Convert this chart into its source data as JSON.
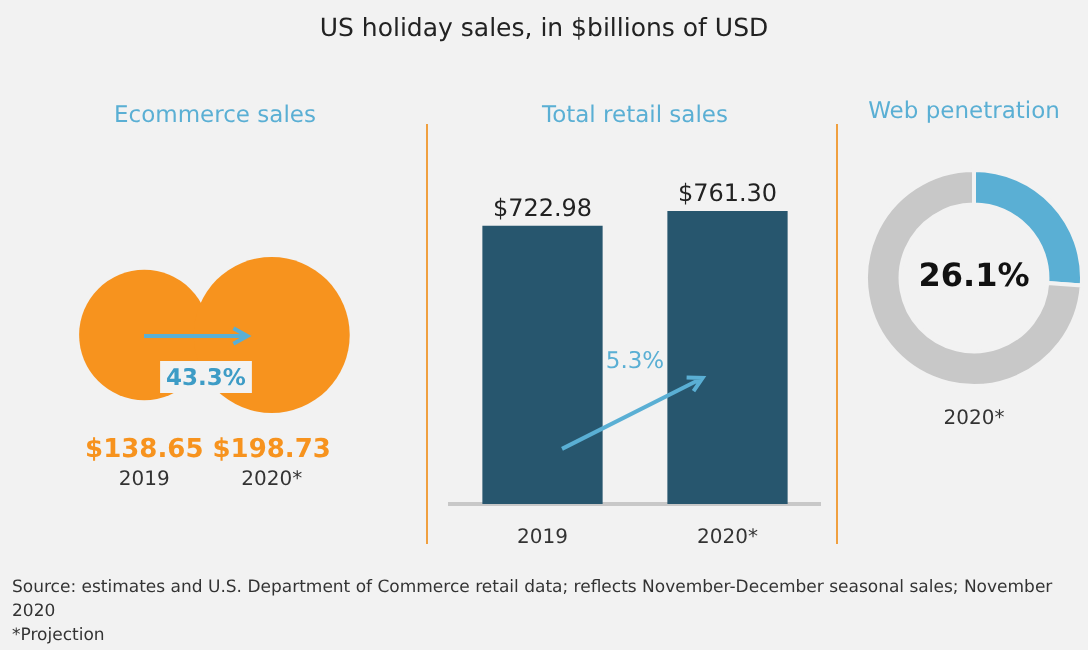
{
  "chart_data": [
    {
      "type": "other",
      "title": "US holiday sales, in $billions of USD",
      "subtitle": "Ecommerce sales",
      "categories": [
        "2019",
        "2020*"
      ],
      "values": [
        138.65,
        198.73
      ],
      "value_labels": [
        "$138.65",
        "$198.73"
      ],
      "color": "#f7931e",
      "annotations": [
        "43.3%"
      ]
    },
    {
      "type": "bar",
      "title": "Total retail sales",
      "categories": [
        "2019",
        "2020*"
      ],
      "values": [
        722.98,
        761.3
      ],
      "value_labels": [
        "$722.98",
        "$761.30"
      ],
      "color": "#27566e",
      "annotations": [
        "5.3%"
      ]
    },
    {
      "type": "donut",
      "title": "Web penetration",
      "xlabel": "2020*",
      "categories": [
        null,
        null
      ],
      "values": [
        26.1,
        73.9
      ],
      "colors": [
        "#5aafd4",
        "#c8c8c8"
      ],
      "value_labels": [
        "26.1%",
        null
      ],
      "annotations": [
        "Source: estimates and U.S. Department of Commerce retail data; reflects November-December seasonal sales; November 2020",
        "*Projection"
      ]
    }
  ]
}
